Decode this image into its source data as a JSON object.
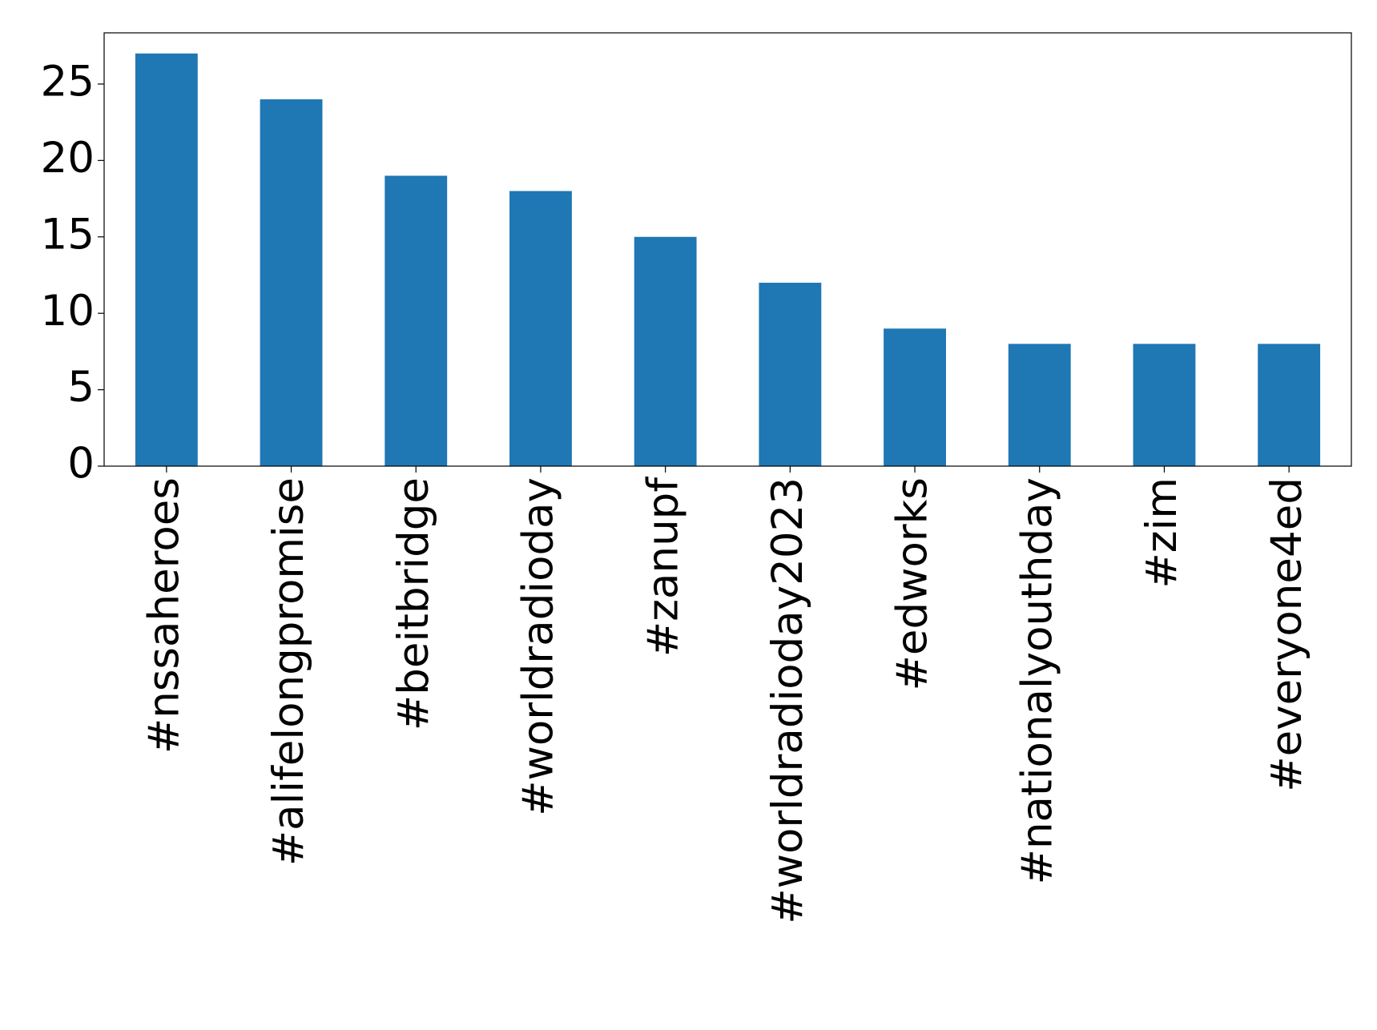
{
  "chart_data": {
    "type": "bar",
    "categories": [
      "#nssaheroes",
      "#alifelongpromise",
      "#beitbridge",
      "#worldradioday",
      "#zanupf",
      "#worldradioday2023",
      "#edworks",
      "#nationalyouthday",
      "#zim",
      "#everyone4ed"
    ],
    "values": [
      27,
      24,
      19,
      18,
      15,
      12,
      9,
      8,
      8,
      8
    ],
    "color": "#1f77b4",
    "ylim": [
      0,
      28.35
    ],
    "yticks": [
      0,
      5,
      10,
      15,
      20,
      25
    ],
    "grid": false
  }
}
